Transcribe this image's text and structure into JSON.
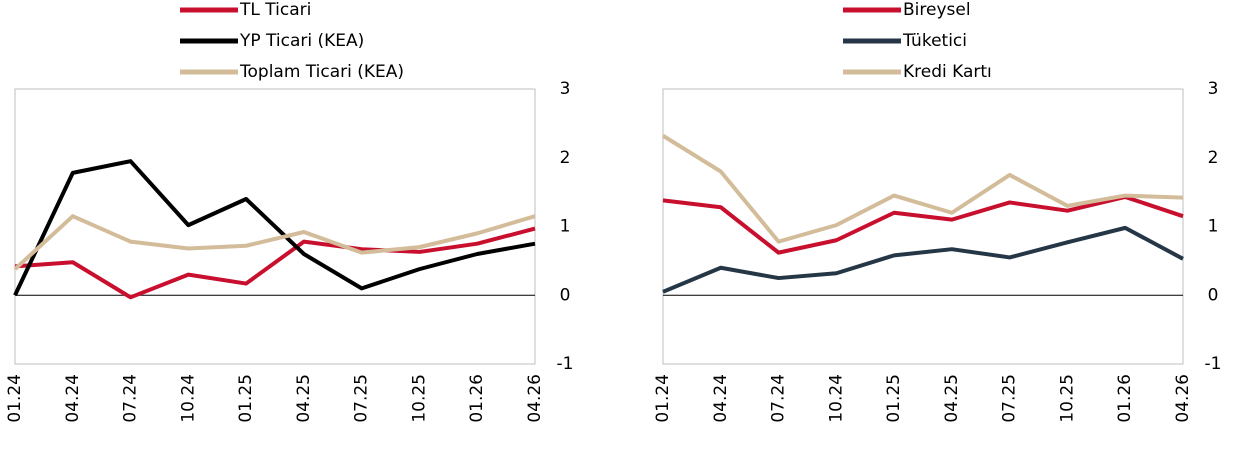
{
  "chart_data": [
    {
      "type": "line",
      "categories": [
        "01.24",
        "04.24",
        "07.24",
        "10.24",
        "01.25",
        "04.25",
        "07.25",
        "10.25",
        "01.26",
        "04.26"
      ],
      "series": [
        {
          "name": "TL Ticari",
          "color": "#c8102e",
          "values": [
            0.42,
            0.48,
            -0.03,
            0.3,
            0.17,
            0.78,
            0.67,
            0.63,
            0.75,
            0.97
          ]
        },
        {
          "name": "YP Ticari (KEA)",
          "color": "#000000",
          "values": [
            0,
            1.78,
            1.95,
            1.02,
            1.4,
            0.6,
            0.1,
            0.38,
            0.6,
            0.75
          ]
        },
        {
          "name": "Toplam Ticari (KEA)",
          "color": "#d3bc9a",
          "values": [
            0.38,
            1.15,
            0.78,
            0.68,
            0.72,
            0.92,
            0.62,
            0.7,
            0.9,
            1.15
          ]
        }
      ],
      "ylim": [
        -1,
        3
      ],
      "yticks": [
        3,
        2,
        1,
        0,
        -1
      ]
    },
    {
      "type": "line",
      "categories": [
        "01.24",
        "04.24",
        "07.24",
        "10.24",
        "01.25",
        "04.25",
        "07.25",
        "10.25",
        "01.26",
        "04.26"
      ],
      "series": [
        {
          "name": "Bireysel",
          "color": "#c8102e",
          "values": [
            1.38,
            1.28,
            0.62,
            0.8,
            1.2,
            1.1,
            1.35,
            1.23,
            1.43,
            1.15
          ]
        },
        {
          "name": "Tüketici",
          "color": "#253746",
          "values": [
            0.05,
            0.4,
            0.25,
            0.32,
            0.58,
            0.67,
            0.55,
            0.77,
            0.98,
            0.53
          ]
        },
        {
          "name": "Kredi Kartı",
          "color": "#d3bc9a",
          "values": [
            2.32,
            1.8,
            0.78,
            1.02,
            1.45,
            1.2,
            1.75,
            1.3,
            1.45,
            1.42
          ]
        }
      ],
      "ylim": [
        -1,
        3
      ],
      "yticks": [
        3,
        2,
        1,
        0,
        -1
      ]
    }
  ]
}
